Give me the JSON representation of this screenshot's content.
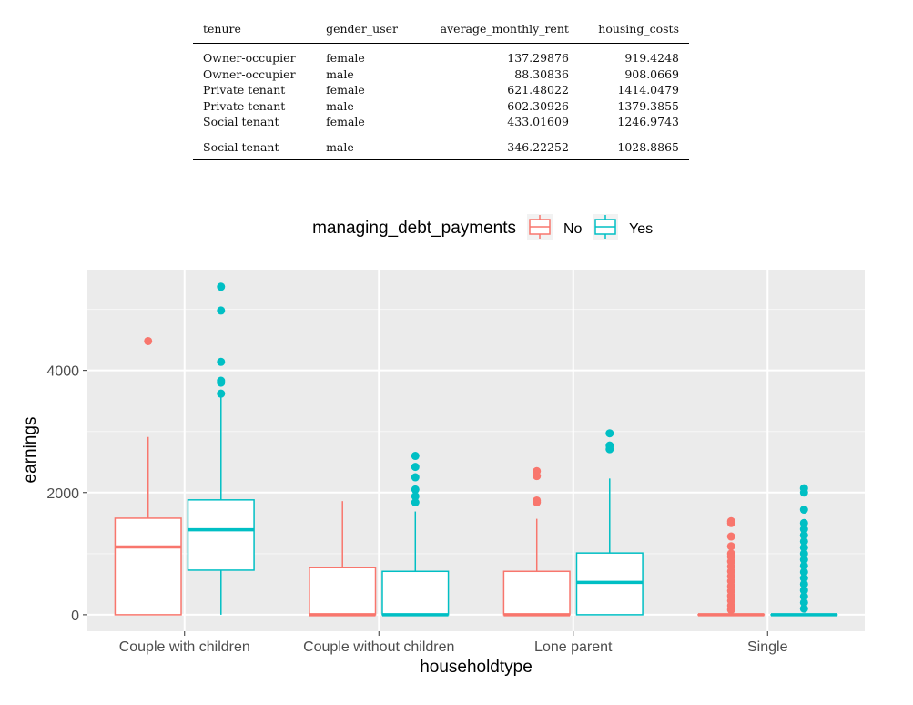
{
  "table": {
    "columns": [
      "tenure",
      "gender_user",
      "average_monthly_rent",
      "housing_costs"
    ],
    "rows": [
      [
        "Owner-occupier",
        "female",
        "137.29876",
        "919.4248"
      ],
      [
        "Owner-occupier",
        "male",
        "88.30836",
        "908.0669"
      ],
      [
        "Private tenant",
        "female",
        "621.48022",
        "1414.0479"
      ],
      [
        "Private tenant",
        "male",
        "602.30926",
        "1379.3855"
      ],
      [
        "Social tenant",
        "female",
        "433.01609",
        "1246.9743"
      ],
      [
        "Social tenant",
        "male",
        "346.22252",
        "1028.8865"
      ]
    ]
  },
  "chart_data": {
    "type": "boxplot",
    "xlabel": "householdtype",
    "ylabel": "earnings",
    "legend_title": "managing_debt_payments",
    "legend_position": "top",
    "grid": true,
    "categories": [
      "Couple with children",
      "Couple without children",
      "Lone parent",
      "Single"
    ],
    "yticks": [
      0,
      2000,
      4000
    ],
    "ylim": [
      -270,
      5650
    ],
    "series": [
      {
        "name": "No",
        "color": "#F8766D",
        "boxes": [
          {
            "min": 0,
            "q1": 0,
            "median": 1110,
            "q3": 1580,
            "max": 2910,
            "outliers": [
              4480
            ]
          },
          {
            "min": 0,
            "q1": 0,
            "median": 0,
            "q3": 770,
            "max": 1860,
            "outliers": []
          },
          {
            "min": 0,
            "q1": 0,
            "median": 0,
            "q3": 710,
            "max": 1570,
            "outliers": [
              1840,
              1870,
              2270,
              2350
            ]
          },
          {
            "min": 0,
            "q1": 0,
            "median": 0,
            "q3": 0,
            "max": 0,
            "outliers": [
              80,
              150,
              230,
              310,
              390,
              470,
              550,
              630,
              710,
              790,
              870,
              950,
              1000,
              1120,
              1280,
              1500,
              1530
            ]
          }
        ]
      },
      {
        "name": "Yes",
        "color": "#00BFC4",
        "boxes": [
          {
            "min": 0,
            "q1": 730,
            "median": 1390,
            "q3": 1880,
            "max": 3590,
            "outliers": [
              3620,
              3800,
              3830,
              4140,
              4980,
              5370
            ]
          },
          {
            "min": 0,
            "q1": 0,
            "median": 0,
            "q3": 710,
            "max": 1690,
            "outliers": [
              1840,
              1940,
              2050,
              2250,
              2420,
              2600
            ]
          },
          {
            "min": 0,
            "q1": 0,
            "median": 530,
            "q3": 1010,
            "max": 2230,
            "outliers": [
              2710,
              2770,
              2970
            ]
          },
          {
            "min": 0,
            "q1": 0,
            "median": 0,
            "q3": 0,
            "max": 0,
            "outliers": [
              100,
              200,
              300,
              400,
              500,
              600,
              700,
              800,
              900,
              1000,
              1100,
              1200,
              1300,
              1400,
              1500,
              1720,
              2000,
              2070
            ]
          }
        ]
      }
    ]
  }
}
